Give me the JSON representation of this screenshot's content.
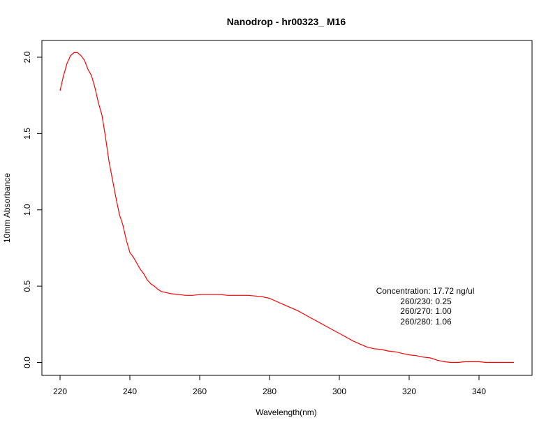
{
  "chart_data": {
    "type": "line",
    "title": "Nanodrop - hr00323_  M16",
    "xlabel": "Wavelength(nm)",
    "ylabel": "10mm Absorbance",
    "xlim": [
      220,
      350
    ],
    "ylim": [
      0.0,
      2.0
    ],
    "x_ticks": [
      220,
      240,
      260,
      280,
      300,
      320,
      340
    ],
    "y_ticks": [
      "0.0",
      "0.5",
      "1.0",
      "1.5",
      "2.0"
    ],
    "grid": false,
    "series_color": "#ff0000",
    "series": [
      {
        "x": [
          220,
          221,
          222,
          223,
          224,
          225,
          226,
          227,
          228,
          229,
          230,
          231,
          232,
          233,
          234,
          235,
          236,
          237,
          238,
          239,
          240,
          241,
          242,
          243,
          244,
          245,
          246,
          247,
          248,
          249,
          250,
          252,
          254,
          256,
          258,
          260,
          262,
          264,
          266,
          268,
          270,
          272,
          274,
          276,
          278,
          280,
          282,
          284,
          286,
          288,
          290,
          292,
          294,
          296,
          298,
          300,
          302,
          304,
          306,
          308,
          310,
          312,
          314,
          316,
          318,
          320,
          322,
          324,
          326,
          328,
          330,
          332,
          334,
          336,
          338,
          340,
          342,
          344,
          346,
          348,
          350
        ],
        "y": [
          1.78,
          1.88,
          1.96,
          2.01,
          2.03,
          2.03,
          2.01,
          1.98,
          1.92,
          1.88,
          1.8,
          1.7,
          1.62,
          1.48,
          1.32,
          1.2,
          1.08,
          0.97,
          0.9,
          0.8,
          0.72,
          0.69,
          0.65,
          0.61,
          0.58,
          0.54,
          0.515,
          0.5,
          0.48,
          0.465,
          0.46,
          0.45,
          0.445,
          0.44,
          0.44,
          0.445,
          0.445,
          0.445,
          0.445,
          0.44,
          0.44,
          0.44,
          0.44,
          0.435,
          0.43,
          0.42,
          0.4,
          0.38,
          0.36,
          0.34,
          0.315,
          0.29,
          0.265,
          0.24,
          0.215,
          0.19,
          0.165,
          0.14,
          0.12,
          0.1,
          0.09,
          0.085,
          0.075,
          0.07,
          0.06,
          0.05,
          0.045,
          0.035,
          0.03,
          0.015,
          0.005,
          0.0,
          0.0,
          0.005,
          0.005,
          0.005,
          0.0,
          0.0,
          0.0,
          0.0,
          0.0
        ]
      }
    ],
    "annotation": {
      "concentration": "Concentration: 17.72 ng/ul",
      "r260_230": "260/230: 0.25",
      "r260_270": "260/270: 1.00",
      "r260_280": "260/280: 1.06"
    }
  }
}
